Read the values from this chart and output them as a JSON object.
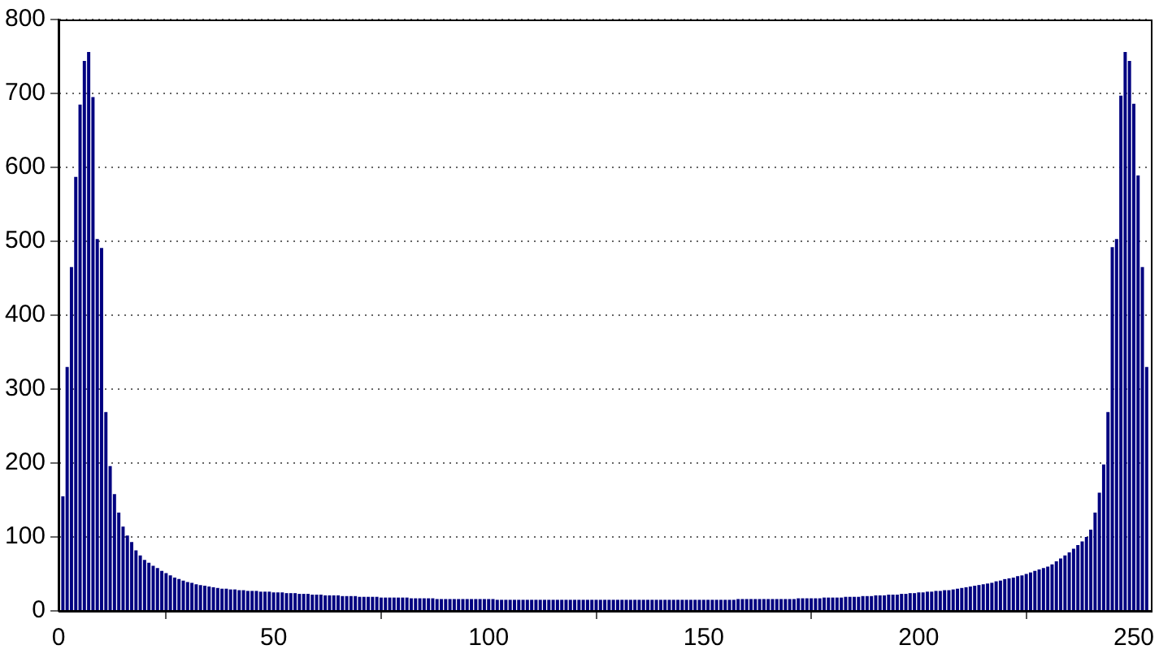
{
  "chart_data": {
    "type": "bar",
    "color": "#000080",
    "x": [
      1,
      2,
      3,
      4,
      5,
      6,
      7,
      8,
      9,
      10,
      11,
      12,
      13,
      14,
      15,
      16,
      17,
      18,
      19,
      20,
      21,
      22,
      23,
      24,
      25,
      26,
      27,
      28,
      29,
      30,
      31,
      32,
      33,
      34,
      35,
      36,
      37,
      38,
      39,
      40,
      41,
      42,
      43,
      44,
      45,
      46,
      47,
      48,
      49,
      50,
      51,
      52,
      53,
      54,
      55,
      56,
      57,
      58,
      59,
      60,
      61,
      62,
      63,
      64,
      65,
      66,
      67,
      68,
      69,
      70,
      71,
      72,
      73,
      74,
      75,
      76,
      77,
      78,
      79,
      80,
      81,
      82,
      83,
      84,
      85,
      86,
      87,
      88,
      89,
      90,
      91,
      92,
      93,
      94,
      95,
      96,
      97,
      98,
      99,
      100,
      101,
      102,
      103,
      104,
      105,
      106,
      107,
      108,
      109,
      110,
      111,
      112,
      113,
      114,
      115,
      116,
      117,
      118,
      119,
      120,
      121,
      122,
      123,
      124,
      125,
      126,
      127,
      128,
      129,
      130,
      131,
      132,
      133,
      134,
      135,
      136,
      137,
      138,
      139,
      140,
      141,
      142,
      143,
      144,
      145,
      146,
      147,
      148,
      149,
      150,
      151,
      152,
      153,
      154,
      155,
      156,
      157,
      158,
      159,
      160,
      161,
      162,
      163,
      164,
      165,
      166,
      167,
      168,
      169,
      170,
      171,
      172,
      173,
      174,
      175,
      176,
      177,
      178,
      179,
      180,
      181,
      182,
      183,
      184,
      185,
      186,
      187,
      188,
      189,
      190,
      191,
      192,
      193,
      194,
      195,
      196,
      197,
      198,
      199,
      200,
      201,
      202,
      203,
      204,
      205,
      206,
      207,
      208,
      209,
      210,
      211,
      212,
      213,
      214,
      215,
      216,
      217,
      218,
      219,
      220,
      221,
      222,
      223,
      224,
      225,
      226,
      227,
      228,
      229,
      230,
      231,
      232,
      233,
      234,
      235,
      236,
      237,
      238,
      239,
      240,
      241,
      242,
      243,
      244,
      245,
      246,
      247,
      248,
      249,
      250,
      251,
      252,
      253
    ],
    "values": [
      155,
      330,
      465,
      587,
      685,
      744,
      756,
      695,
      503,
      491,
      269,
      196,
      158,
      133,
      114,
      102,
      93,
      82,
      75,
      69,
      65,
      61,
      58,
      54,
      51,
      48,
      45,
      43,
      41,
      39,
      38,
      36,
      35,
      34,
      33,
      32,
      31,
      30,
      30,
      29,
      29,
      28,
      28,
      27,
      27,
      27,
      26,
      26,
      26,
      25,
      25,
      25,
      24,
      24,
      24,
      23,
      23,
      23,
      22,
      22,
      22,
      21,
      21,
      21,
      21,
      20,
      20,
      20,
      20,
      19,
      19,
      19,
      19,
      19,
      18,
      18,
      18,
      18,
      18,
      18,
      18,
      17,
      17,
      17,
      17,
      17,
      17,
      16,
      16,
      16,
      16,
      16,
      16,
      16,
      16,
      16,
      16,
      16,
      16,
      16,
      16,
      15,
      15,
      15,
      15,
      15,
      15,
      15,
      15,
      15,
      15,
      15,
      15,
      15,
      15,
      15,
      15,
      15,
      15,
      15,
      15,
      15,
      15,
      15,
      15,
      15,
      15,
      15,
      15,
      15,
      15,
      15,
      15,
      15,
      15,
      15,
      15,
      15,
      15,
      15,
      15,
      15,
      15,
      15,
      15,
      15,
      15,
      15,
      15,
      15,
      15,
      15,
      15,
      15,
      15,
      15,
      15,
      16,
      16,
      16,
      16,
      16,
      16,
      16,
      16,
      16,
      16,
      16,
      16,
      16,
      16,
      17,
      17,
      17,
      17,
      17,
      17,
      18,
      18,
      18,
      18,
      18,
      19,
      19,
      19,
      19,
      20,
      20,
      20,
      21,
      21,
      21,
      22,
      22,
      22,
      23,
      23,
      24,
      24,
      25,
      25,
      26,
      26,
      27,
      27,
      28,
      28,
      29,
      30,
      31,
      32,
      33,
      34,
      35,
      36,
      37,
      38,
      40,
      41,
      43,
      44,
      45,
      47,
      48,
      50,
      52,
      54,
      56,
      58,
      60,
      63,
      67,
      71,
      75,
      79,
      84,
      89,
      94,
      100,
      110,
      133,
      160,
      198,
      269,
      492,
      503,
      697,
      756,
      744,
      686,
      589,
      465,
      330
    ],
    "xlim": [
      0,
      254
    ],
    "xticks": [
      0,
      50,
      100,
      150,
      200,
      250
    ],
    "ylim": [
      0,
      800
    ],
    "yticks": [
      0,
      100,
      200,
      300,
      400,
      500,
      600,
      700,
      800
    ],
    "grid": "y",
    "legend": false
  }
}
